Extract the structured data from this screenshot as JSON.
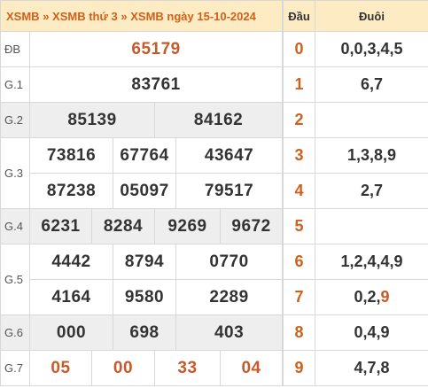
{
  "header": {
    "crumb1": "XSMB",
    "sep1": "»",
    "crumb2": "XSMB thứ 3",
    "sep2": "»",
    "crumb3": "XSMB ngày 15-10-2024"
  },
  "prizes": {
    "db": {
      "label": "ĐB",
      "numbers": [
        "65179"
      ]
    },
    "g1": {
      "label": "G.1",
      "numbers": [
        "83761"
      ]
    },
    "g2": {
      "label": "G.2",
      "numbers": [
        "85139",
        "84162"
      ]
    },
    "g3": {
      "label": "G.3",
      "numbers": [
        "73816",
        "67764",
        "43647",
        "87238",
        "05097",
        "79517"
      ]
    },
    "g4": {
      "label": "G.4",
      "numbers": [
        "6231",
        "8284",
        "9269",
        "9672"
      ]
    },
    "g5": {
      "label": "G.5",
      "numbers": [
        "4442",
        "8794",
        "0770",
        "4164",
        "9580",
        "2289"
      ]
    },
    "g6": {
      "label": "G.6",
      "numbers": [
        "000",
        "698",
        "403"
      ]
    },
    "g7": {
      "label": "G.7",
      "numbers": [
        "05",
        "00",
        "33",
        "04"
      ]
    }
  },
  "loto": {
    "head_title": "Đầu",
    "tail_title": "Đuôi",
    "rows": [
      {
        "head": "0",
        "tail": "0,0,3,4,5"
      },
      {
        "head": "1",
        "tail": "6,7"
      },
      {
        "head": "2",
        "tail": ""
      },
      {
        "head": "3",
        "tail": "1,3,8,9"
      },
      {
        "head": "4",
        "tail": "2,7"
      },
      {
        "head": "5",
        "tail": ""
      },
      {
        "head": "6",
        "tail": "1,2,4,4,9"
      },
      {
        "head": "7",
        "tail_main": "0,2,",
        "tail_highlight": "9"
      },
      {
        "head": "8",
        "tail": "0,4,9"
      },
      {
        "head": "9",
        "tail": "4,7,8"
      }
    ]
  },
  "colors": {
    "accent": "#d0601c",
    "special_number": "#c55a2b",
    "header_bg": "#fdebc4",
    "row_gray": "#eeeeee"
  }
}
